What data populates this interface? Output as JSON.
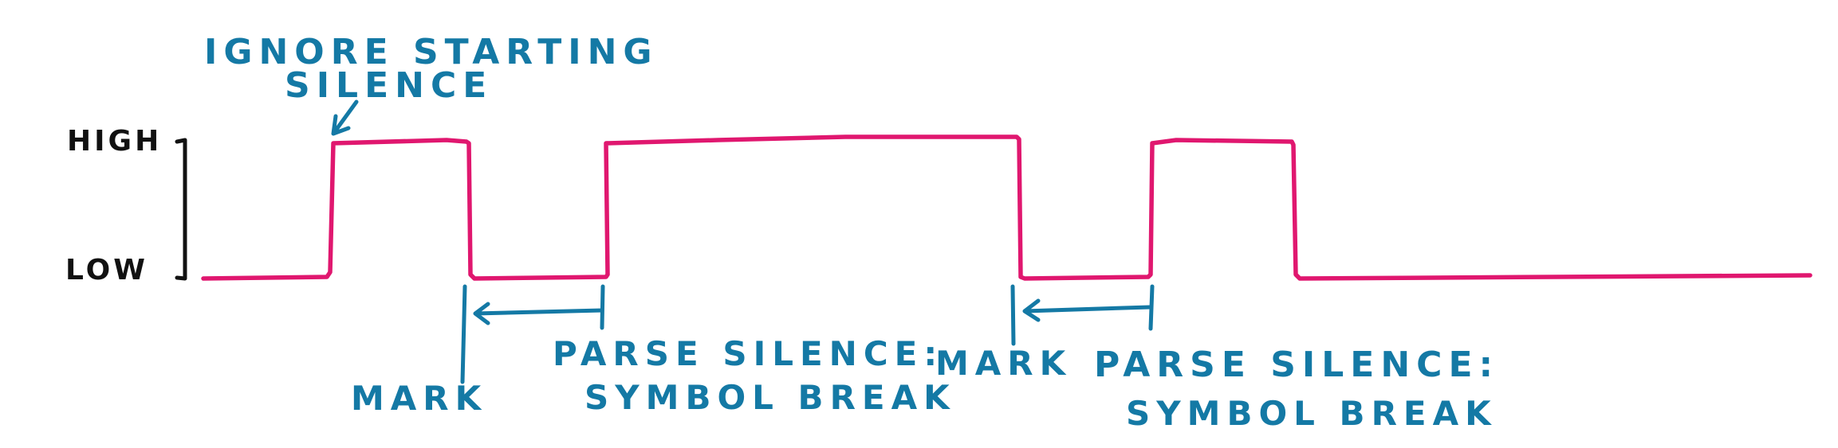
{
  "axis": {
    "high": "HIGH",
    "low": "LOW"
  },
  "annotations": {
    "ignore_line1": "IGNORE STARTING",
    "ignore_line2": "SILENCE",
    "mark_1": "MARK",
    "parse_1_line1": "PARSE SILENCE:",
    "parse_1_line2": "SYMBOL BREAK",
    "mark_2": "MARK",
    "parse_2_line1": "PARSE SILENCE:",
    "parse_2_line2": "SYMBOL BREAK"
  },
  "colors": {
    "signal": "#e0176f",
    "annotation": "#1479a5",
    "axis": "#111111"
  }
}
